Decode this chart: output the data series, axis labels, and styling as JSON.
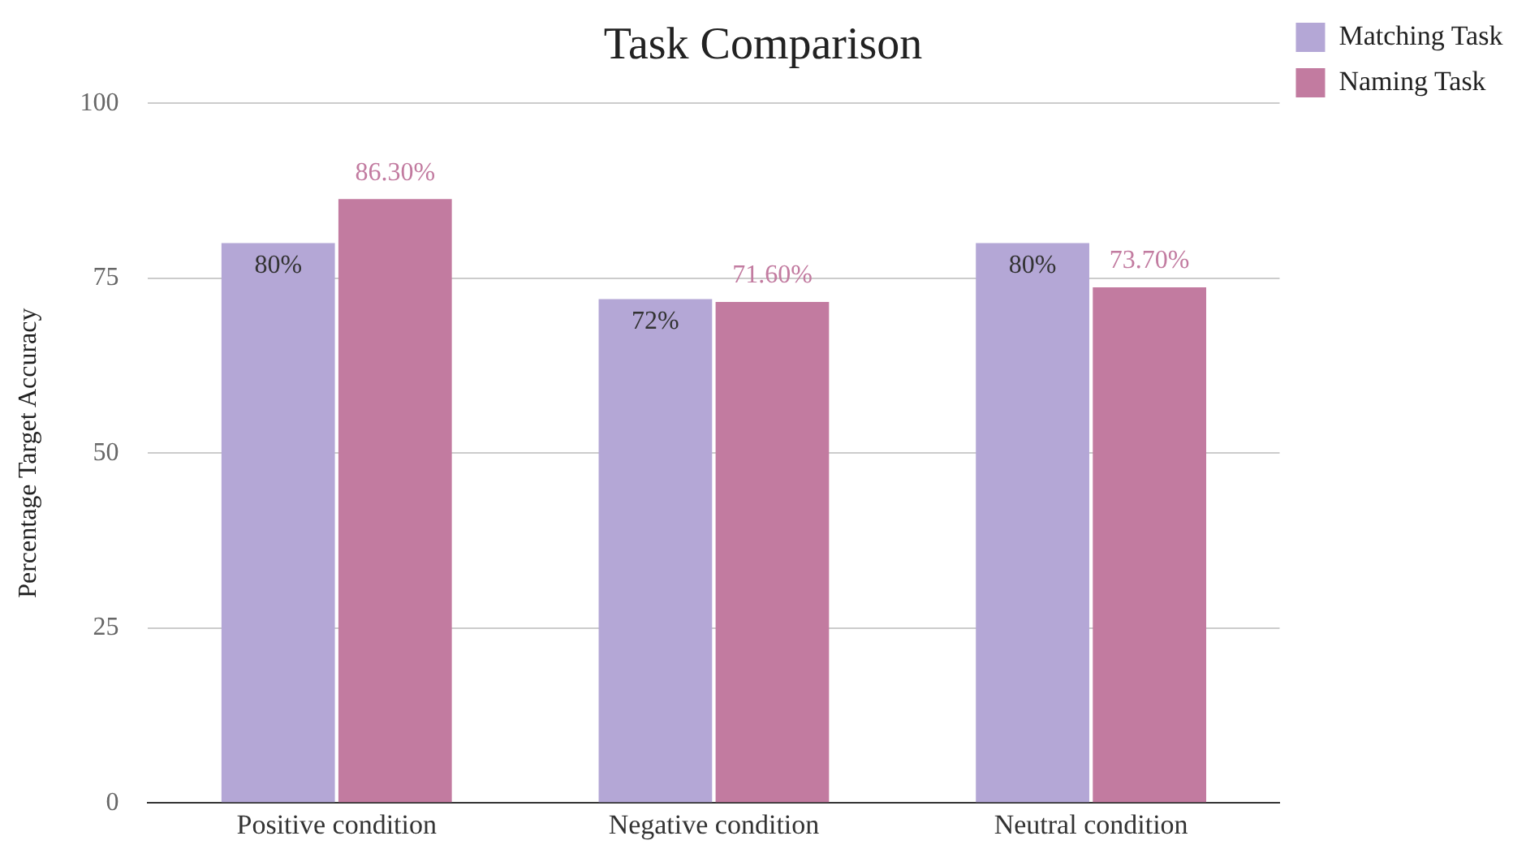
{
  "chart_data": {
    "type": "bar",
    "title": "Task Comparison",
    "ylabel": "Percentage Target Accuracy",
    "categories": [
      "Positive condition",
      "Negative condition",
      "Neutral condition"
    ],
    "series": [
      {
        "name": "Matching Task",
        "color": "#b4a7d6",
        "values": [
          80,
          72,
          80
        ],
        "value_labels": [
          "80%",
          "72%",
          "80%"
        ]
      },
      {
        "name": "Naming Task",
        "color": "#c27ba0",
        "values": [
          86.3,
          71.6,
          73.7
        ],
        "value_labels": [
          "86.30%",
          "71.60%",
          "73.70%"
        ]
      }
    ],
    "ylim": [
      0,
      100
    ],
    "yticks": [
      0,
      25,
      50,
      75,
      100
    ],
    "grid": "y",
    "legend": "top right"
  }
}
